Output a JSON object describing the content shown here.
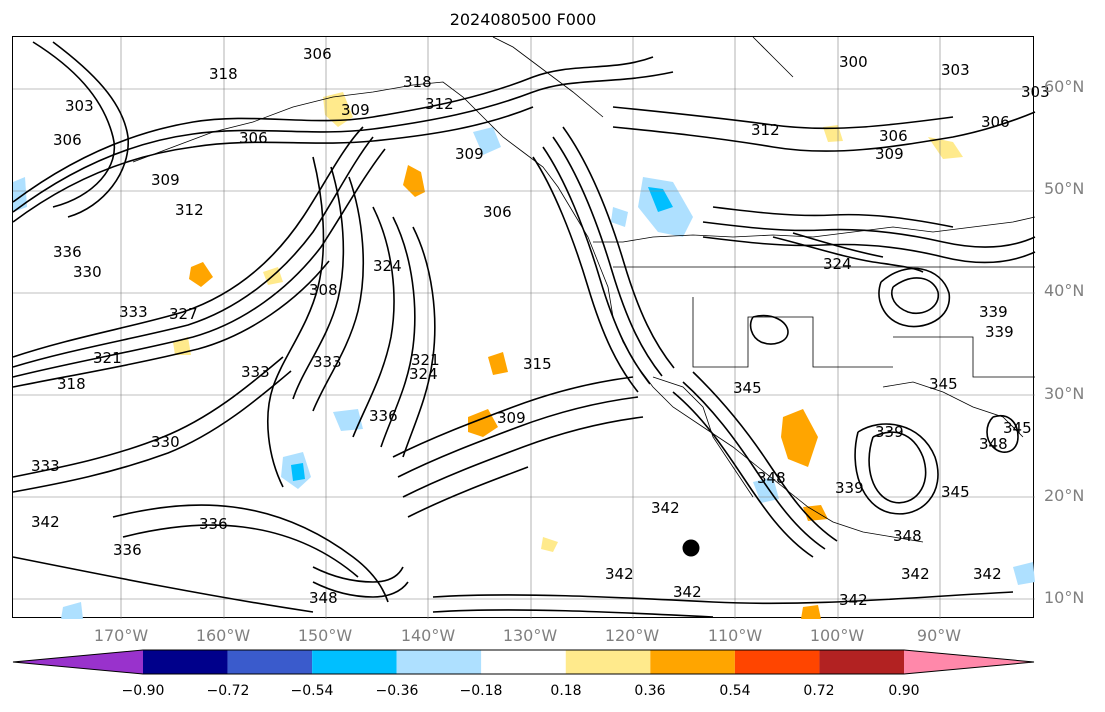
{
  "title": "2024080500 F000",
  "latitude_labels": [
    "60°N",
    "50°N",
    "40°N",
    "30°N",
    "20°N",
    "10°N"
  ],
  "longitude_labels": [
    "170°W",
    "160°W",
    "150°W",
    "140°W",
    "130°W",
    "120°W",
    "110°W",
    "100°W",
    "90°W"
  ],
  "contour_labels": [
    "318",
    "318",
    "312",
    "309",
    "309",
    "306",
    "306",
    "303",
    "312",
    "306",
    "309",
    "303",
    "306",
    "306",
    "309",
    "312",
    "306",
    "300",
    "303",
    "330",
    "336",
    "333",
    "327",
    "321",
    "318",
    "324",
    "308",
    "321",
    "324",
    "315",
    "333",
    "309",
    "336",
    "342",
    "339",
    "339",
    "345",
    "348",
    "342",
    "336",
    "330",
    "324",
    "333",
    "342",
    "342",
    "348",
    "342",
    "345",
    "339",
    "342",
    "333",
    "336",
    "345",
    "348",
    "339",
    "348",
    "345",
    "342"
  ],
  "colorbar": {
    "ticks": [
      "−0.90",
      "−0.72",
      "−0.54",
      "−0.36",
      "−0.18",
      "0.18",
      "0.36",
      "0.54",
      "0.72",
      "0.90"
    ],
    "colors": [
      "#9932cc",
      "#00008b",
      "#3a5bcc",
      "#00bfff",
      "#aee0ff",
      "#ffffff",
      "#ffea8c",
      "#ffa500",
      "#ff4500",
      "#b22222",
      "#ff88aa"
    ]
  },
  "colors": {
    "contour": "#000000",
    "grid": "#808080",
    "coast": "#000000",
    "axis_label": "#808080",
    "marker": "#000000"
  }
}
